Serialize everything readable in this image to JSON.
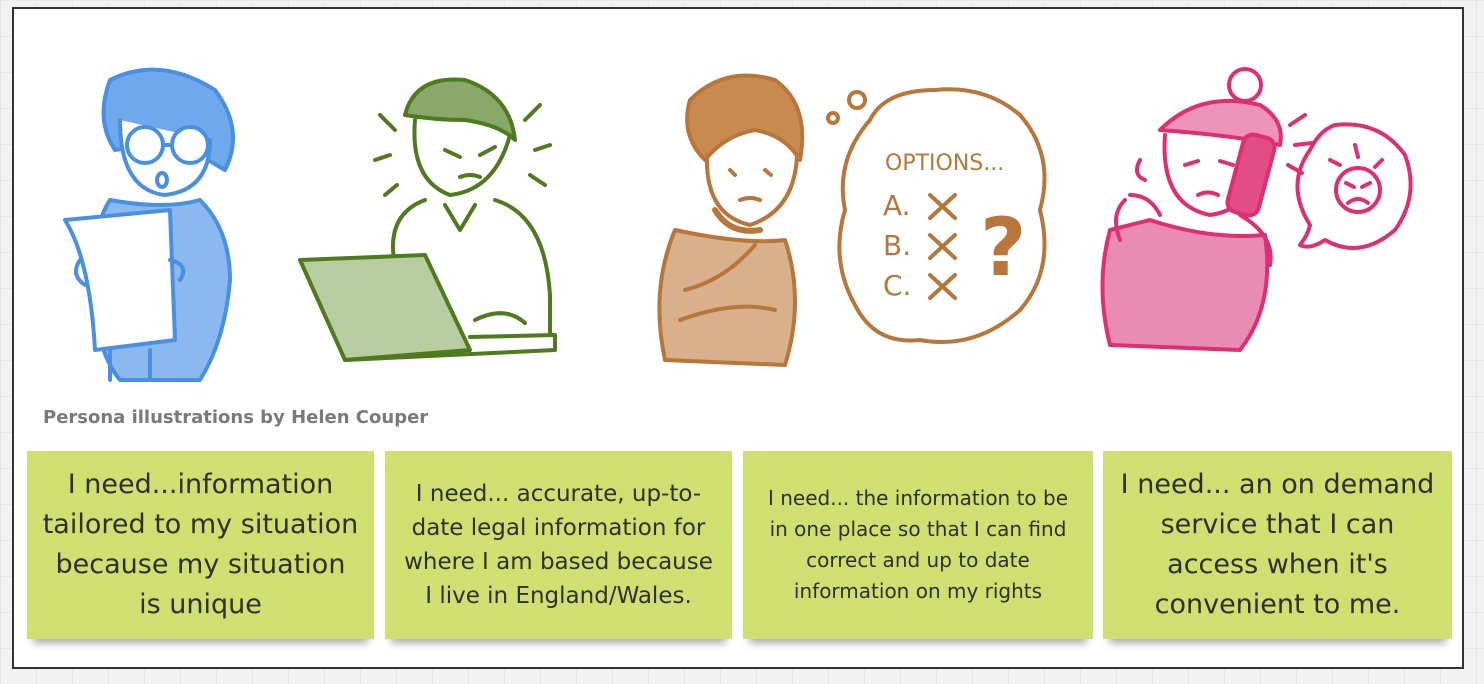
{
  "credit": "Persona illustrations by Helen Couper",
  "thought_bubble": {
    "title": "OPTIONS...",
    "options": [
      "A.",
      "B.",
      "C."
    ],
    "question": "?"
  },
  "notes": [
    {
      "text": "I need...information tailored to my situation because my situation is unique"
    },
    {
      "text": "I need... accurate, up-to-date legal information for where I am based because I live in England/Wales."
    },
    {
      "text": "I need... the information to be in one place so that I can find correct and up to date information on my rights"
    },
    {
      "text": "I need... an on demand service that I can access when it's convenient to me."
    }
  ],
  "colors": {
    "note": "#cfe071",
    "persona_blue": "#4a90e2",
    "persona_green": "#4f7a1e",
    "persona_brown": "#b8763a",
    "persona_pink": "#de2f73"
  }
}
